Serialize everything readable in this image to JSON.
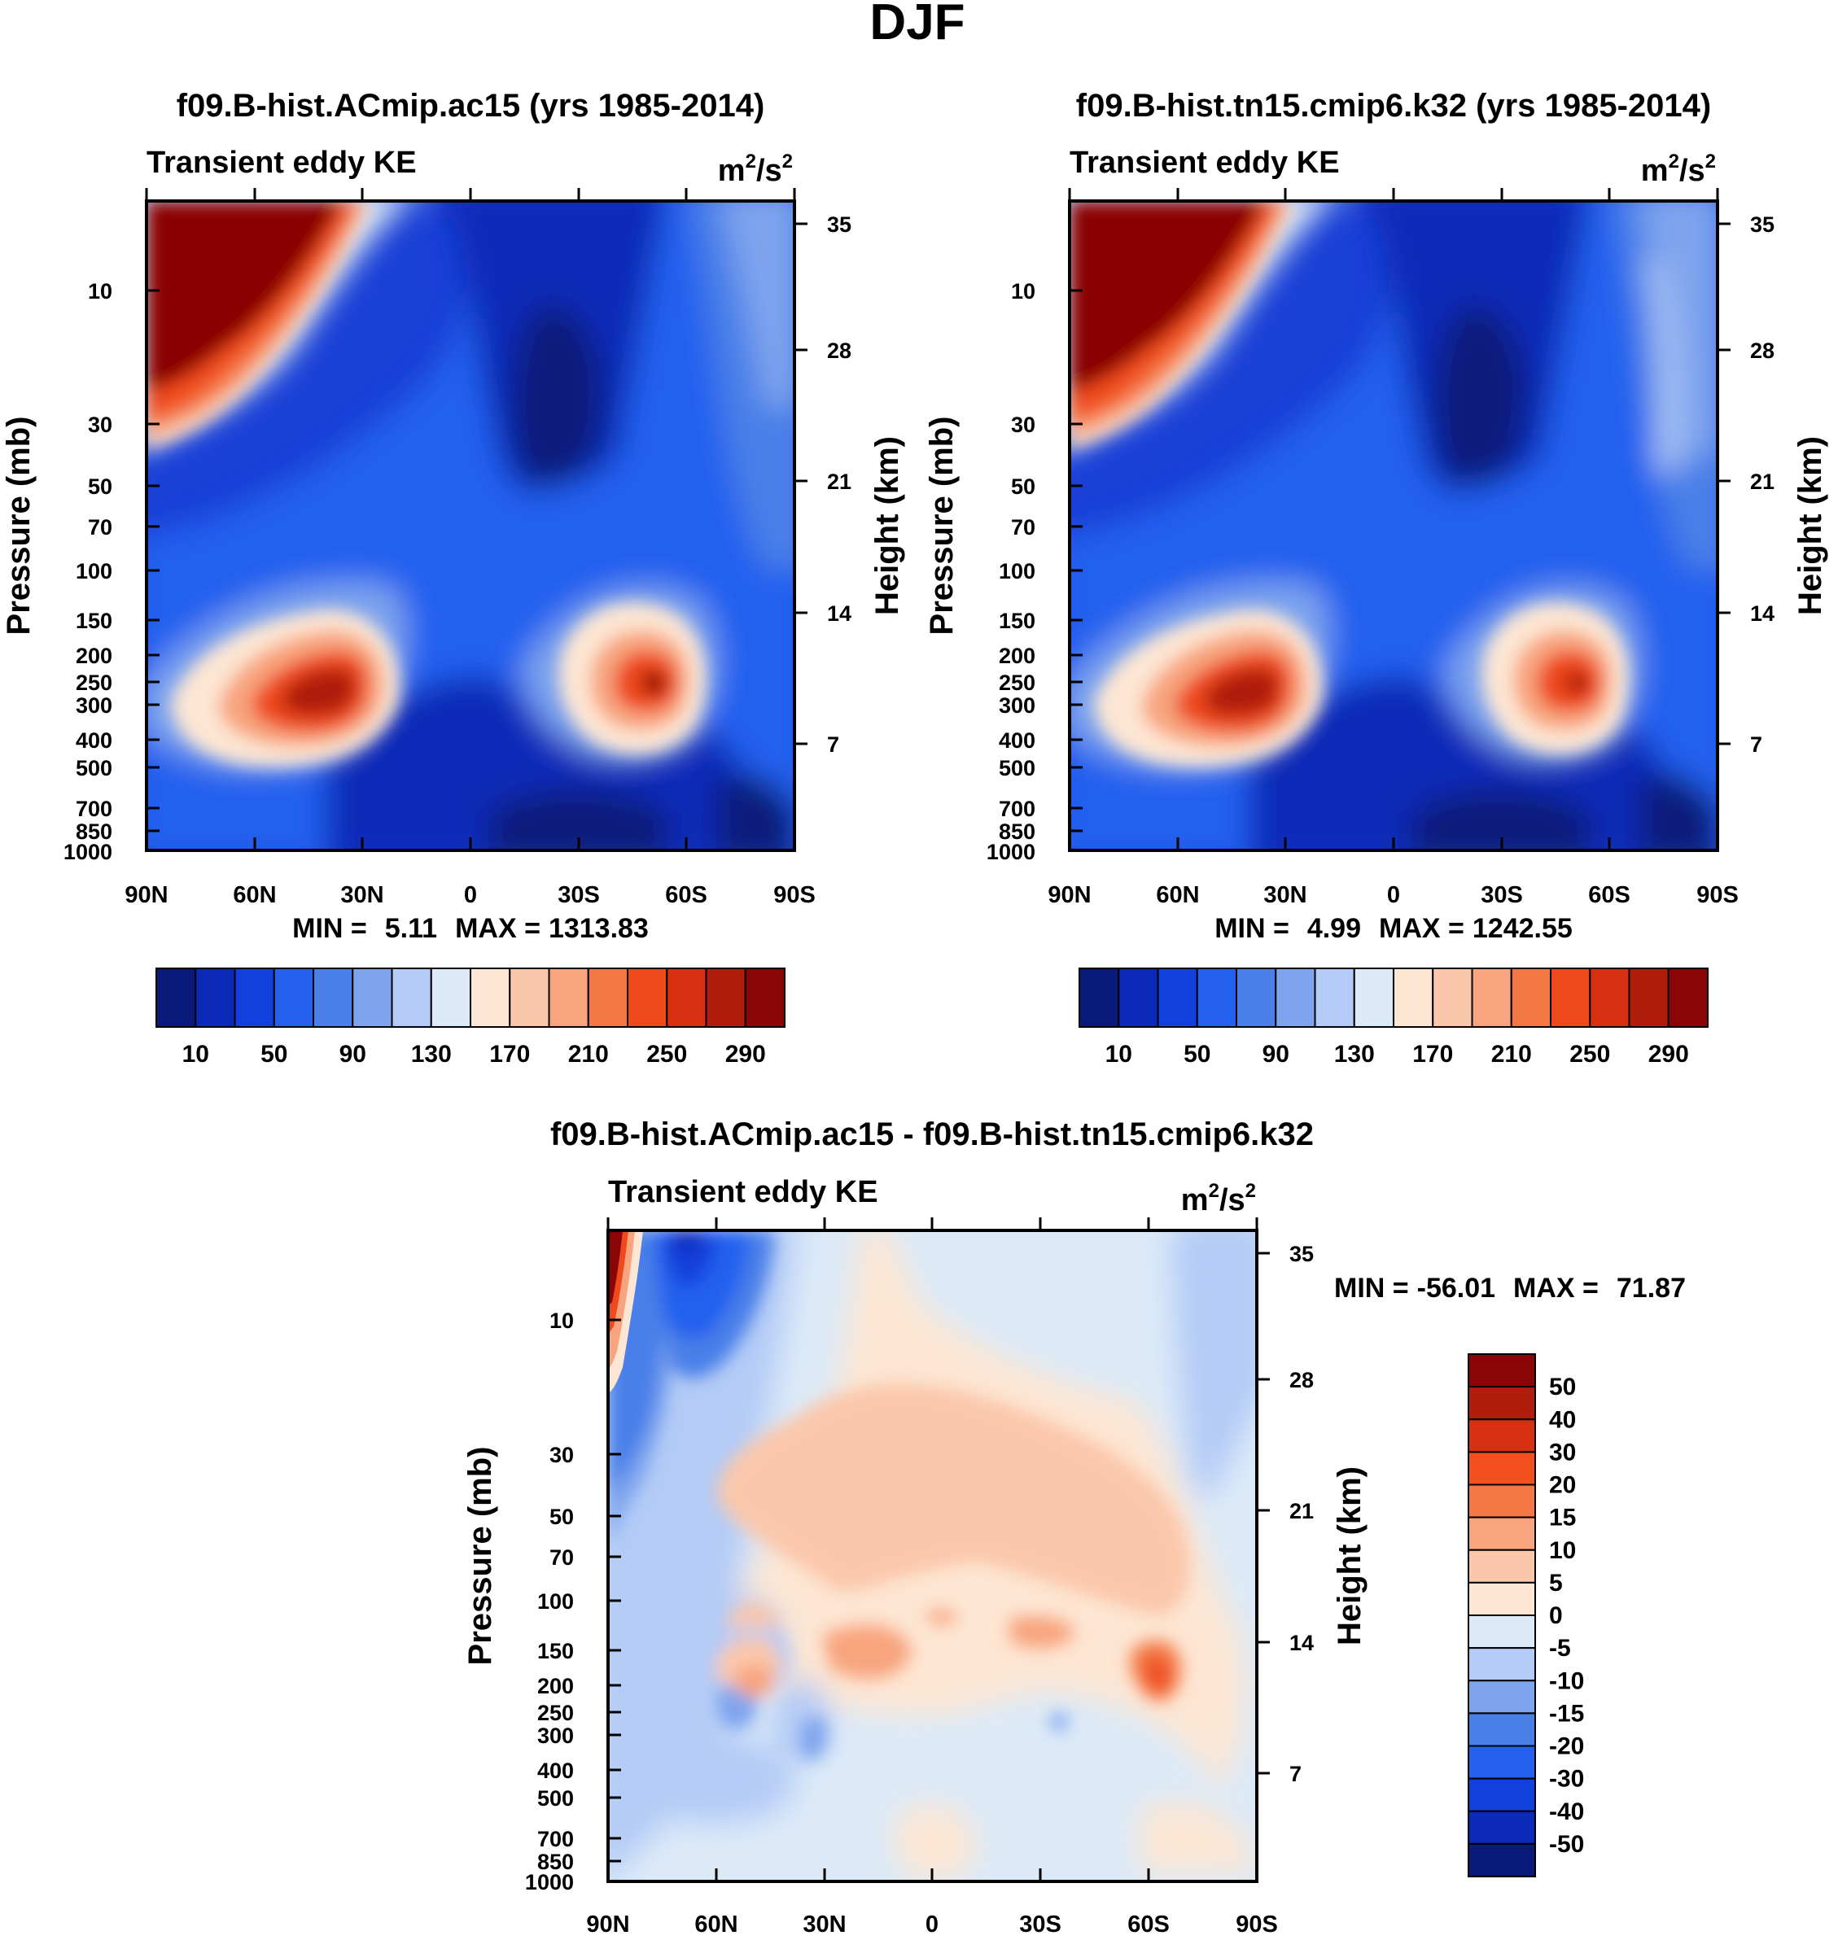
{
  "figure": {
    "title": "DJF"
  },
  "chart_data": [
    {
      "type": "contour",
      "title": "f09.B-hist.ACmip.ac15 (yrs 1985-2014)",
      "subtitle_left": "Transient eddy KE",
      "units": {
        "base": "m",
        "exp1": "2",
        "sep": "/s",
        "exp2": "2"
      },
      "ylabel": "Pressure (mb)",
      "ylabel_right": "Height (km)",
      "xticks": [
        "90N",
        "60N",
        "30N",
        "0",
        "30S",
        "60S",
        "90S"
      ],
      "yticks": [
        "10",
        "30",
        "50",
        "70",
        "100",
        "150",
        "200",
        "250",
        "300",
        "400",
        "500",
        "700",
        "850",
        "1000"
      ],
      "yticks_right": [
        "35",
        "28",
        "21",
        "14",
        "7"
      ],
      "stats": {
        "min_label": "MIN =",
        "min": "5.11",
        "max_label": "MAX =",
        "max": "1313.83"
      },
      "colorbar": {
        "labels": [
          "10",
          "50",
          "90",
          "130",
          "170",
          "210",
          "250",
          "290"
        ],
        "colors": [
          "#0a1a7a",
          "#0b2ab8",
          "#1240dc",
          "#2460ee",
          "#4a7fe8",
          "#7ea4ee",
          "#b3cbf6",
          "#dceaf8",
          "#fde6d3",
          "#fbc7ab",
          "#f8a47e",
          "#f47845",
          "#ee4a1e",
          "#d63010",
          "#b01d0c",
          "#8a0505"
        ]
      }
    },
    {
      "type": "contour",
      "title": "f09.B-hist.tn15.cmip6.k32 (yrs 1985-2014)",
      "subtitle_left": "Transient eddy KE",
      "units": {
        "base": "m",
        "exp1": "2",
        "sep": "/s",
        "exp2": "2"
      },
      "ylabel": "Pressure (mb)",
      "ylabel_right": "Height (km)",
      "xticks": [
        "90N",
        "60N",
        "30N",
        "0",
        "30S",
        "60S",
        "90S"
      ],
      "yticks": [
        "10",
        "30",
        "50",
        "70",
        "100",
        "150",
        "200",
        "250",
        "300",
        "400",
        "500",
        "700",
        "850",
        "1000"
      ],
      "yticks_right": [
        "35",
        "28",
        "21",
        "14",
        "7"
      ],
      "stats": {
        "min_label": "MIN =",
        "min": "4.99",
        "max_label": "MAX =",
        "max": "1242.55"
      },
      "colorbar": {
        "labels": [
          "10",
          "50",
          "90",
          "130",
          "170",
          "210",
          "250",
          "290"
        ],
        "colors": [
          "#0a1a7a",
          "#0b2ab8",
          "#1240dc",
          "#2460ee",
          "#4a7fe8",
          "#7ea4ee",
          "#b3cbf6",
          "#dceaf8",
          "#fde6d3",
          "#fbc7ab",
          "#f8a47e",
          "#f47845",
          "#ee4a1e",
          "#d63010",
          "#b01d0c",
          "#8a0505"
        ]
      }
    },
    {
      "type": "contour",
      "title": "f09.B-hist.ACmip.ac15 - f09.B-hist.tn15.cmip6.k32",
      "subtitle_left": "Transient eddy KE",
      "units": {
        "base": "m",
        "exp1": "2",
        "sep": "/s",
        "exp2": "2"
      },
      "ylabel": "Pressure (mb)",
      "ylabel_right": "Height (km)",
      "xticks": [
        "90N",
        "60N",
        "30N",
        "0",
        "30S",
        "60S",
        "90S"
      ],
      "yticks": [
        "10",
        "30",
        "50",
        "70",
        "100",
        "150",
        "200",
        "250",
        "300",
        "400",
        "500",
        "700",
        "850",
        "1000"
      ],
      "yticks_right": [
        "35",
        "28",
        "21",
        "14",
        "7"
      ],
      "stats": {
        "min_label": "MIN =",
        "min": "-56.01",
        "max_label": "MAX =",
        "max": "71.87"
      },
      "colorbar": {
        "labels": [
          "50",
          "40",
          "30",
          "20",
          "15",
          "10",
          "5",
          "0",
          "-5",
          "-10",
          "-15",
          "-20",
          "-30",
          "-40",
          "-50"
        ],
        "colors": [
          "#8a0505",
          "#b01d0c",
          "#d63010",
          "#f4501e",
          "#f47845",
          "#f8a47e",
          "#fbc7ab",
          "#fde6d3",
          "#dceaf8",
          "#b3cbf6",
          "#7ea4ee",
          "#4a7fe8",
          "#2460ee",
          "#1240dc",
          "#0b2ab8",
          "#0a1a7a"
        ]
      }
    }
  ]
}
